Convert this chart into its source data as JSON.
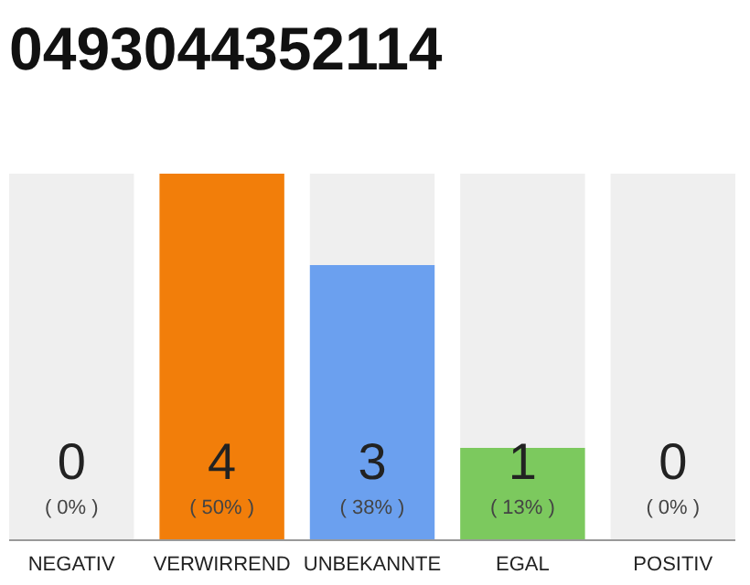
{
  "chart_data": {
    "type": "bar",
    "title": "0493044352114",
    "categories": [
      "NEGATIV",
      "VERWIRREND",
      "UNBEKANNTE",
      "EGAL",
      "POSITIV"
    ],
    "stacked": true,
    "ylim": [
      0,
      4
    ],
    "tick_labels": "x",
    "grid": false,
    "series": [
      {
        "values": [
          0,
          4,
          3,
          1,
          0
        ],
        "colors": [
          "#cccccc",
          "#f27e0a",
          "#6ba0ef",
          "#7cc95e",
          "#cccccc"
        ],
        "value_labels": [
          null,
          "4",
          "3",
          "1",
          null
        ]
      },
      {
        "values": [
          4,
          0,
          1,
          3,
          4
        ],
        "color": "#efefef"
      }
    ],
    "annotations": [
      {
        "text": "0",
        "x": "NEGATIV",
        "y": 0
      },
      {
        "text": "0",
        "x": "POSITIV",
        "y": 0
      },
      "( 0% )",
      "( 50% )",
      "( 38% )",
      "( 13% )",
      "( 0% )"
    ]
  }
}
